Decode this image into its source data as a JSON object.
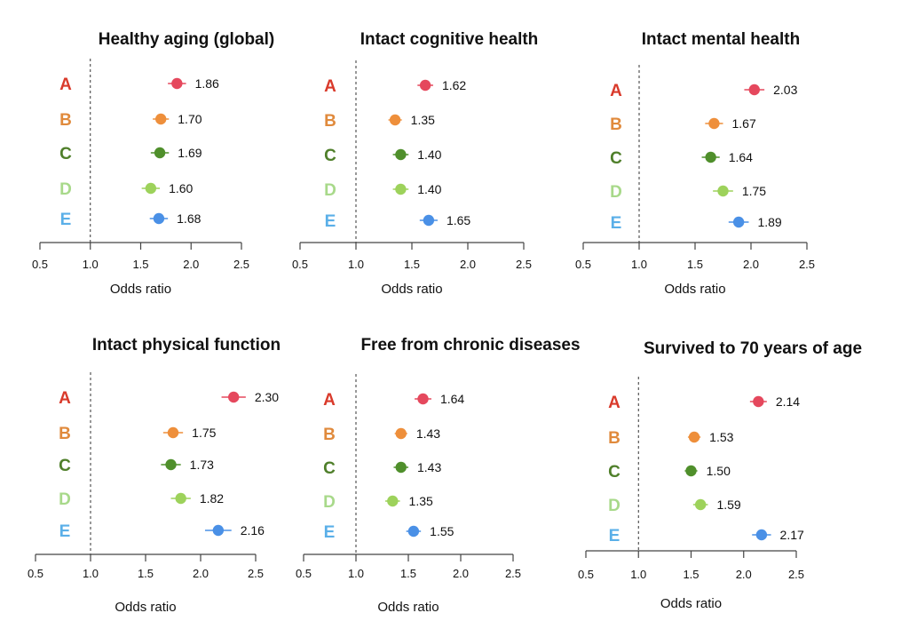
{
  "colors": {
    "A": "#e5485d",
    "B": "#ee8f3b",
    "C": "#4f8f2b",
    "D": "#9dd25b",
    "E": "#4a90e6",
    "label_A": "#d93a2b",
    "label_B": "#e08a3c",
    "label_C": "#4f7f2a",
    "label_D": "#a8d98a",
    "label_E": "#5aafe8",
    "axis": "#444444",
    "refline": "#333333"
  },
  "chart_data": [
    {
      "type": "scatter",
      "title": "Healthy aging (global)",
      "xlabel": "Odds ratio",
      "xlim": [
        0.5,
        2.5
      ],
      "xticks": [
        "0.5",
        "1.0",
        "1.5",
        "2.0",
        "2.5"
      ],
      "reference_line": 1.0,
      "categories": [
        "A",
        "B",
        "C",
        "D",
        "E"
      ],
      "values": [
        1.86,
        1.7,
        1.69,
        1.6,
        1.68
      ],
      "value_labels": [
        "1.86",
        "1.70",
        "1.69",
        "1.60",
        "1.68"
      ],
      "ci_low": [
        1.77,
        1.62,
        1.6,
        1.51,
        1.59
      ],
      "ci_high": [
        1.95,
        1.78,
        1.78,
        1.69,
        1.77
      ]
    },
    {
      "type": "scatter",
      "title": "Intact cognitive health",
      "xlabel": "Odds ratio",
      "xlim": [
        0.5,
        2.5
      ],
      "xticks": [
        "0.5",
        "1.0",
        "1.5",
        "2.0",
        "2.5"
      ],
      "reference_line": 1.0,
      "categories": [
        "A",
        "B",
        "C",
        "D",
        "E"
      ],
      "values": [
        1.62,
        1.35,
        1.4,
        1.4,
        1.65
      ],
      "value_labels": [
        "1.62",
        "1.35",
        "1.40",
        "1.40",
        "1.65"
      ],
      "ci_low": [
        1.55,
        1.29,
        1.33,
        1.33,
        1.57
      ],
      "ci_high": [
        1.69,
        1.41,
        1.47,
        1.47,
        1.73
      ]
    },
    {
      "type": "scatter",
      "title": "Intact mental health",
      "xlabel": "Odds ratio",
      "xlim": [
        0.5,
        2.5
      ],
      "xticks": [
        "0.5",
        "1.0",
        "1.5",
        "2.0",
        "2.5"
      ],
      "reference_line": 1.0,
      "categories": [
        "A",
        "B",
        "C",
        "D",
        "E"
      ],
      "values": [
        2.03,
        1.67,
        1.64,
        1.75,
        1.89
      ],
      "value_labels": [
        "2.03",
        "1.67",
        "1.64",
        "1.75",
        "1.89"
      ],
      "ci_low": [
        1.94,
        1.59,
        1.56,
        1.66,
        1.8
      ],
      "ci_high": [
        2.12,
        1.75,
        1.72,
        1.84,
        1.98
      ]
    },
    {
      "type": "scatter",
      "title": "Intact physical function",
      "xlabel": "Odds ratio",
      "xlim": [
        0.5,
        2.5
      ],
      "xticks": [
        "0.5",
        "1.0",
        "1.5",
        "2.0",
        "2.5"
      ],
      "reference_line": 1.0,
      "categories": [
        "A",
        "B",
        "C",
        "D",
        "E"
      ],
      "values": [
        2.3,
        1.75,
        1.73,
        1.82,
        2.16
      ],
      "value_labels": [
        "2.30",
        "1.75",
        "1.73",
        "1.82",
        "2.16"
      ],
      "ci_low": [
        2.19,
        1.66,
        1.64,
        1.73,
        2.04
      ],
      "ci_high": [
        2.41,
        1.84,
        1.82,
        1.91,
        2.28
      ]
    },
    {
      "type": "scatter",
      "title": "Free from chronic diseases",
      "xlabel": "Odds ratio",
      "xlim": [
        0.5,
        2.5
      ],
      "xticks": [
        "0.5",
        "1.0",
        "1.5",
        "2.0",
        "2.5"
      ],
      "reference_line": 1.0,
      "categories": [
        "A",
        "B",
        "C",
        "D",
        "E"
      ],
      "values": [
        1.64,
        1.43,
        1.43,
        1.35,
        1.55
      ],
      "value_labels": [
        "1.64",
        "1.43",
        "1.43",
        "1.35",
        "1.55"
      ],
      "ci_low": [
        1.56,
        1.37,
        1.36,
        1.28,
        1.48
      ],
      "ci_high": [
        1.72,
        1.49,
        1.5,
        1.42,
        1.62
      ]
    },
    {
      "type": "scatter",
      "title": "Survived to 70 years of age",
      "xlabel": "Odds ratio",
      "xlim": [
        0.5,
        2.5
      ],
      "xticks": [
        "0.5",
        "1.0",
        "1.5",
        "2.0",
        "2.5"
      ],
      "reference_line": 1.0,
      "categories": [
        "A",
        "B",
        "C",
        "D",
        "E"
      ],
      "values": [
        2.14,
        1.53,
        1.5,
        1.59,
        2.17
      ],
      "value_labels": [
        "2.14",
        "1.53",
        "1.50",
        "1.59",
        "2.17"
      ],
      "ci_low": [
        2.06,
        1.47,
        1.44,
        1.52,
        2.08
      ],
      "ci_high": [
        2.22,
        1.59,
        1.56,
        1.66,
        2.26
      ]
    }
  ]
}
